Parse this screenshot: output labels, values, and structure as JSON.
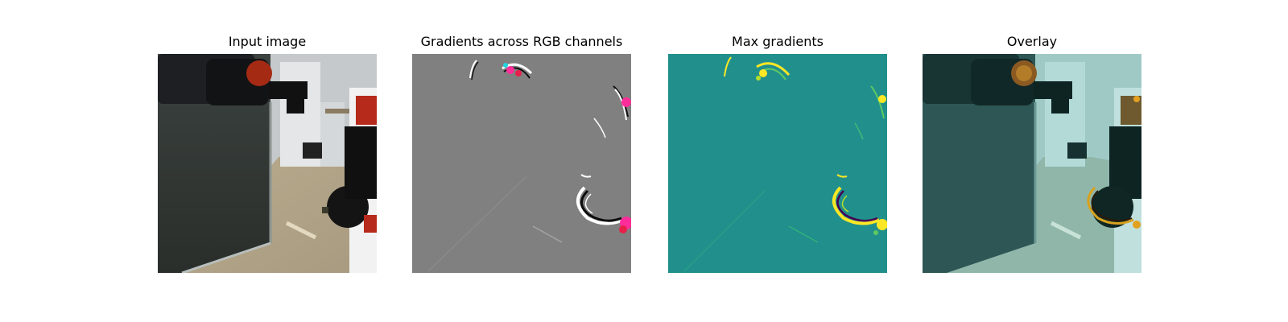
{
  "chart_data": [
    {
      "type": "heatmap",
      "title": "Input image",
      "xlabel": "",
      "ylabel": "",
      "grid": false,
      "axes": "off",
      "content": "rgb image"
    },
    {
      "type": "heatmap",
      "title": "Gradients across RGB channels",
      "xlabel": "",
      "ylabel": "",
      "grid": false,
      "axes": "off",
      "content": "rgb gradient map"
    },
    {
      "type": "heatmap",
      "title": "Max gradients",
      "xlabel": "",
      "ylabel": "",
      "grid": false,
      "axes": "off",
      "content": "viridis heatmap"
    },
    {
      "type": "heatmap",
      "title": "Overlay",
      "xlabel": "",
      "ylabel": "",
      "grid": false,
      "axes": "off",
      "content": "image with heatmap overlay"
    }
  ],
  "colors": {
    "background": "#ffffff",
    "gray_field": "#808080",
    "viridis_mid": "#21908c",
    "viridis_high": "#fde725",
    "viridis_low": "#440154",
    "gradient_red": "#e8204a",
    "gradient_magenta": "#ff2d9a"
  }
}
